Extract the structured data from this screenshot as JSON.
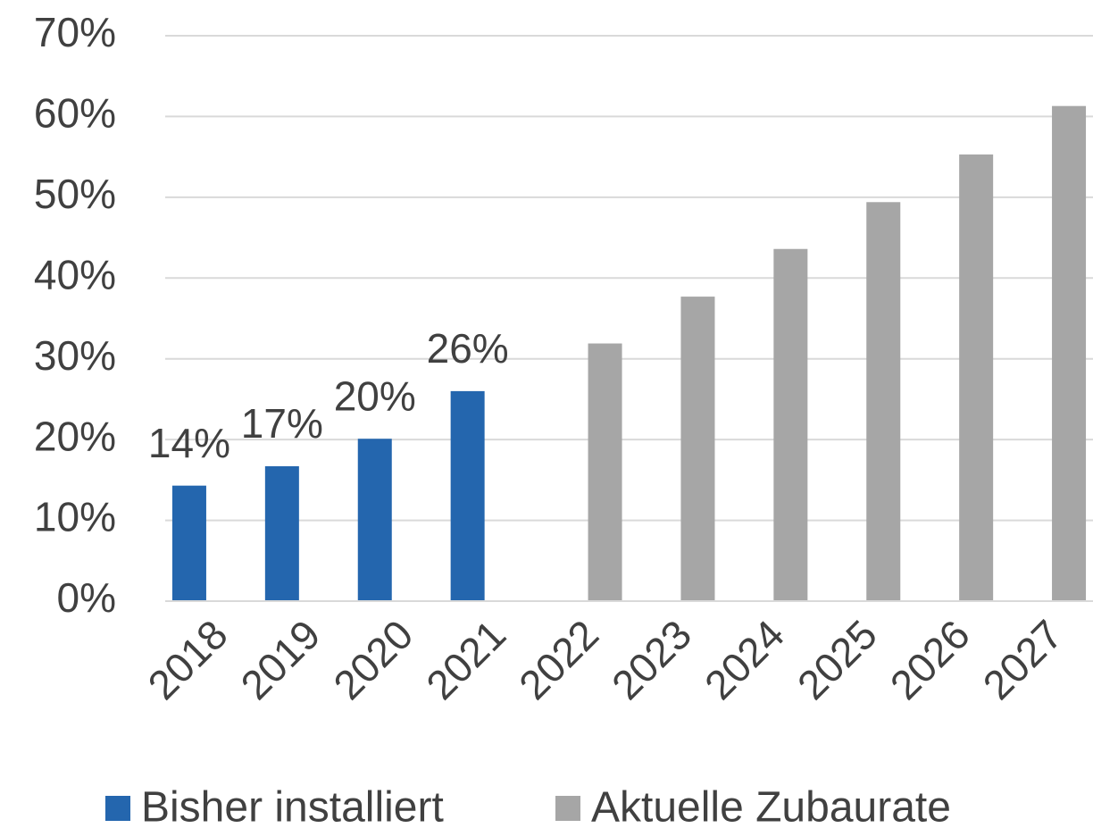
{
  "chart_data": {
    "type": "bar",
    "categories": [
      "2018",
      "2019",
      "2020",
      "2021",
      "2022",
      "2023",
      "2024",
      "2025",
      "2026",
      "2027"
    ],
    "series": [
      {
        "name": "Bisher installiert",
        "color": "#2466ae",
        "values": [
          14.3,
          16.7,
          20.1,
          26.0,
          null,
          null,
          null,
          null,
          null,
          null
        ],
        "value_labels": [
          "14%",
          "17%",
          "20%",
          "26%",
          null,
          null,
          null,
          null,
          null,
          null
        ]
      },
      {
        "name": "Aktuelle Zubaurate",
        "color": "#a6a6a6",
        "values": [
          null,
          null,
          null,
          null,
          31.9,
          37.7,
          43.6,
          49.4,
          55.3,
          61.3
        ]
      }
    ],
    "ylim": [
      0,
      70
    ],
    "yticks": [
      {
        "value": 0,
        "label": "0%"
      },
      {
        "value": 10,
        "label": "10%"
      },
      {
        "value": 20,
        "label": "20%"
      },
      {
        "value": 30,
        "label": "30%"
      },
      {
        "value": 40,
        "label": "40%"
      },
      {
        "value": 50,
        "label": "50%"
      },
      {
        "value": 60,
        "label": "60%"
      },
      {
        "value": 70,
        "label": "70%"
      }
    ],
    "grid": true,
    "legend": "bottom"
  }
}
